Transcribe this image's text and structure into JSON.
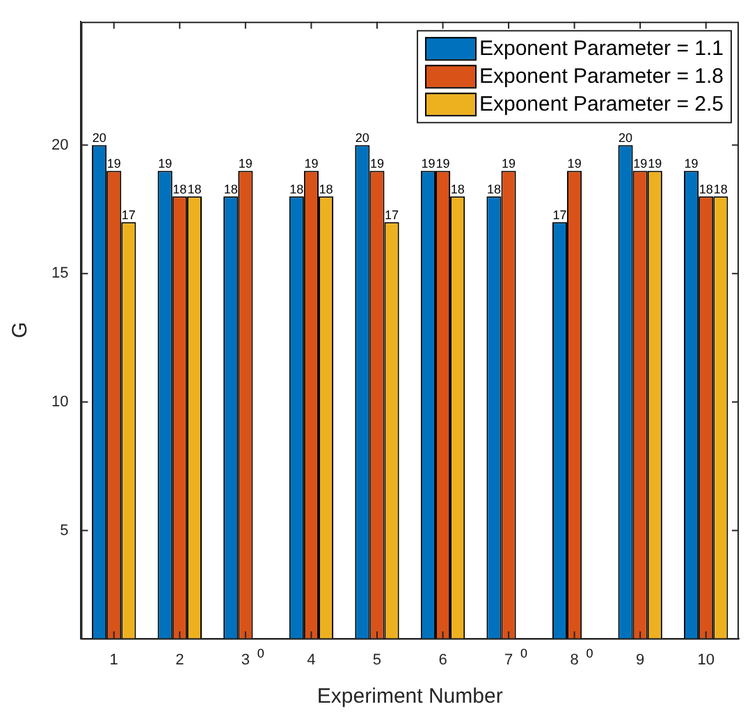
{
  "chart_data": {
    "type": "bar",
    "xlabel": "Experiment Number",
    "ylabel": "G",
    "categories": [
      "1",
      "2",
      "3",
      "4",
      "5",
      "6",
      "7",
      "8",
      "9",
      "10"
    ],
    "series": [
      {
        "name": "Exponent Parameter = 1.1",
        "color": "#0072bd",
        "values": [
          20,
          19,
          18,
          18,
          20,
          19,
          18,
          17,
          20,
          19
        ]
      },
      {
        "name": "Exponent Parameter = 1.8",
        "color": "#d95319",
        "values": [
          19,
          18,
          19,
          19,
          19,
          19,
          19,
          19,
          19,
          18
        ]
      },
      {
        "name": "Exponent Parameter = 2.5",
        "color": "#edb120",
        "values": [
          17,
          18,
          null,
          18,
          17,
          18,
          null,
          null,
          19,
          18
        ]
      }
    ],
    "annotations": [
      {
        "text": "0",
        "x": "3"
      },
      {
        "text": "0",
        "x": "7"
      },
      {
        "text": "0",
        "x": "8"
      }
    ],
    "ylim": [
      0.8,
      24.8
    ],
    "yticks": [
      5,
      10,
      15,
      20
    ],
    "grid": false,
    "legend": "top right",
    "data_labels": true
  }
}
